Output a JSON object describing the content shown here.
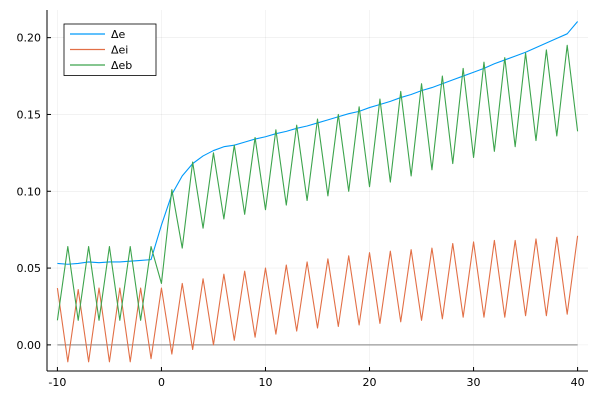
{
  "chart_data": {
    "type": "line",
    "title": "",
    "xlabel": "",
    "ylabel": "",
    "xlim": [
      -11,
      41
    ],
    "ylim": [
      -0.017,
      0.218
    ],
    "xticks": [
      -10,
      0,
      10,
      20,
      30,
      40
    ],
    "yticks": [
      0.0,
      0.05,
      0.1,
      0.15,
      0.2
    ],
    "xtick_labels": [
      "-10",
      "0",
      "10",
      "20",
      "30",
      "40"
    ],
    "ytick_labels": [
      "0.00",
      "0.05",
      "0.10",
      "0.15",
      "0.20"
    ],
    "grid": true,
    "legend_position": "top-left",
    "baseline": {
      "y": 0.0,
      "x": [
        -10,
        40
      ],
      "color": "#999999"
    },
    "series": [
      {
        "name": "Δe",
        "color": "#009AFA",
        "x": [
          -10,
          -9,
          -8,
          -7,
          -6,
          -5,
          -4,
          -3,
          -2,
          -1,
          0,
          1,
          2,
          3,
          4,
          5,
          6,
          7,
          8,
          9,
          10,
          11,
          12,
          13,
          14,
          15,
          16,
          17,
          18,
          19,
          20,
          21,
          22,
          23,
          24,
          25,
          26,
          27,
          28,
          29,
          30,
          31,
          32,
          33,
          34,
          35,
          36,
          37,
          38,
          39,
          40
        ],
        "y": [
          0.053,
          0.0525,
          0.053,
          0.054,
          0.0535,
          0.054,
          0.054,
          0.0545,
          0.055,
          0.0555,
          0.078,
          0.098,
          0.11,
          0.118,
          0.123,
          0.1265,
          0.129,
          0.13,
          0.132,
          0.134,
          0.1355,
          0.1375,
          0.139,
          0.141,
          0.1425,
          0.1445,
          0.1465,
          0.1485,
          0.1505,
          0.152,
          0.1545,
          0.1565,
          0.1585,
          0.161,
          0.163,
          0.1655,
          0.1675,
          0.17,
          0.1725,
          0.175,
          0.1775,
          0.18,
          0.183,
          0.1855,
          0.188,
          0.1905,
          0.1935,
          0.1965,
          0.1995,
          0.2025,
          0.2105
        ]
      },
      {
        "name": "Δei",
        "color": "#E26F46",
        "x": [
          -10,
          -9,
          -8,
          -7,
          -6,
          -5,
          -4,
          -3,
          -2,
          -1,
          0,
          1,
          2,
          3,
          4,
          5,
          6,
          7,
          8,
          9,
          10,
          11,
          12,
          13,
          14,
          15,
          16,
          17,
          18,
          19,
          20,
          21,
          22,
          23,
          24,
          25,
          26,
          27,
          28,
          29,
          30,
          31,
          32,
          33,
          34,
          35,
          36,
          37,
          38,
          39,
          40
        ],
        "y": [
          0.037,
          -0.011,
          0.036,
          -0.011,
          0.037,
          -0.011,
          0.037,
          -0.011,
          0.037,
          -0.009,
          0.037,
          -0.006,
          0.04,
          -0.003,
          0.043,
          0.0,
          0.046,
          0.003,
          0.048,
          0.005,
          0.05,
          0.007,
          0.052,
          0.009,
          0.054,
          0.011,
          0.056,
          0.012,
          0.058,
          0.013,
          0.06,
          0.014,
          0.061,
          0.015,
          0.062,
          0.016,
          0.063,
          0.017,
          0.066,
          0.018,
          0.067,
          0.018,
          0.068,
          0.018,
          0.068,
          0.019,
          0.069,
          0.019,
          0.07,
          0.02,
          0.071
        ]
      },
      {
        "name": "Δeb",
        "color": "#3DA44D",
        "x": [
          -10,
          -9,
          -8,
          -7,
          -6,
          -5,
          -4,
          -3,
          -2,
          -1,
          0,
          1,
          2,
          3,
          4,
          5,
          6,
          7,
          8,
          9,
          10,
          11,
          12,
          13,
          14,
          15,
          16,
          17,
          18,
          19,
          20,
          21,
          22,
          23,
          24,
          25,
          26,
          27,
          28,
          29,
          30,
          31,
          32,
          33,
          34,
          35,
          36,
          37,
          38,
          39,
          40
        ],
        "y": [
          0.016,
          0.064,
          0.016,
          0.064,
          0.016,
          0.064,
          0.016,
          0.064,
          0.016,
          0.064,
          0.04,
          0.101,
          0.063,
          0.119,
          0.076,
          0.125,
          0.082,
          0.13,
          0.085,
          0.135,
          0.088,
          0.14,
          0.091,
          0.143,
          0.094,
          0.147,
          0.097,
          0.15,
          0.1,
          0.155,
          0.103,
          0.16,
          0.106,
          0.165,
          0.11,
          0.17,
          0.114,
          0.175,
          0.118,
          0.18,
          0.122,
          0.184,
          0.126,
          0.187,
          0.129,
          0.19,
          0.133,
          0.192,
          0.136,
          0.195,
          0.139
        ]
      }
    ]
  }
}
